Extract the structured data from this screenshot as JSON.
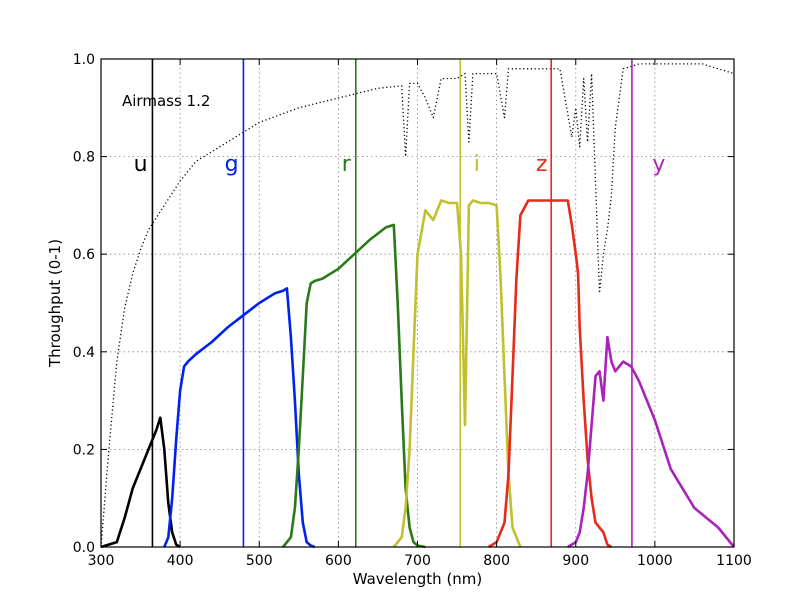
{
  "chart_data": {
    "type": "line",
    "title": "",
    "xlabel": "Wavelength (nm)",
    "ylabel": "Throughput (0-1)",
    "xlim": [
      300,
      1100
    ],
    "ylim": [
      0.0,
      1.0
    ],
    "xticks": [
      300,
      400,
      500,
      600,
      700,
      800,
      900,
      1000,
      1100
    ],
    "xtick_labels": [
      "300",
      "400",
      "500",
      "600",
      "700",
      "800",
      "900",
      "1000",
      "1100"
    ],
    "yticks": [
      0.0,
      0.2,
      0.4,
      0.6,
      0.8,
      1.0
    ],
    "ytick_labels": [
      "0.0",
      "0.2",
      "0.4",
      "0.6",
      "0.8",
      "1.0"
    ],
    "grid": true,
    "annotation": "Airmass 1.2",
    "series": [
      {
        "name": "u",
        "color": "#000000",
        "style": "solid",
        "x": [
          300,
          320,
          330,
          340,
          350,
          360,
          370,
          375,
          380,
          385,
          390,
          395,
          400
        ],
        "y": [
          0.0,
          0.01,
          0.06,
          0.12,
          0.16,
          0.2,
          0.24,
          0.265,
          0.2,
          0.09,
          0.03,
          0.005,
          0.0
        ]
      },
      {
        "name": "g",
        "color": "#0022ee",
        "style": "solid",
        "x": [
          380,
          385,
          390,
          395,
          400,
          405,
          410,
          420,
          440,
          460,
          480,
          500,
          520,
          530,
          535,
          540,
          545,
          550,
          555,
          560,
          565,
          570
        ],
        "y": [
          0.0,
          0.02,
          0.1,
          0.22,
          0.32,
          0.37,
          0.38,
          0.395,
          0.42,
          0.45,
          0.475,
          0.5,
          0.52,
          0.525,
          0.53,
          0.43,
          0.3,
          0.15,
          0.05,
          0.01,
          0.003,
          0.0
        ]
      },
      {
        "name": "r",
        "color": "#2a7a1a",
        "style": "solid",
        "x": [
          530,
          540,
          545,
          550,
          555,
          560,
          565,
          570,
          580,
          600,
          620,
          640,
          660,
          670,
          675,
          680,
          685,
          690,
          695,
          700,
          710
        ],
        "y": [
          0.0,
          0.02,
          0.08,
          0.2,
          0.35,
          0.5,
          0.54,
          0.545,
          0.55,
          0.57,
          0.6,
          0.63,
          0.655,
          0.66,
          0.5,
          0.3,
          0.12,
          0.04,
          0.01,
          0.003,
          0.0
        ]
      },
      {
        "name": "i",
        "color": "#c0c030",
        "style": "solid",
        "x": [
          670,
          680,
          685,
          690,
          695,
          700,
          710,
          720,
          730,
          740,
          750,
          755,
          760,
          765,
          770,
          780,
          790,
          800,
          805,
          810,
          815,
          820,
          830
        ],
        "y": [
          0.0,
          0.02,
          0.08,
          0.2,
          0.4,
          0.6,
          0.69,
          0.67,
          0.71,
          0.705,
          0.705,
          0.6,
          0.25,
          0.7,
          0.71,
          0.705,
          0.705,
          0.7,
          0.55,
          0.35,
          0.15,
          0.04,
          0.0
        ]
      },
      {
        "name": "z",
        "color": "#e82a1a",
        "style": "solid",
        "x": [
          790,
          800,
          810,
          815,
          820,
          825,
          830,
          840,
          860,
          880,
          890,
          895,
          900,
          903,
          905,
          910,
          915,
          920,
          925,
          930,
          935,
          940,
          945
        ],
        "y": [
          0.0,
          0.01,
          0.05,
          0.15,
          0.35,
          0.55,
          0.68,
          0.71,
          0.71,
          0.71,
          0.71,
          0.66,
          0.6,
          0.56,
          0.45,
          0.3,
          0.18,
          0.1,
          0.05,
          0.04,
          0.03,
          0.005,
          0.0
        ]
      },
      {
        "name": "y",
        "color": "#aa22bb",
        "style": "solid",
        "x": [
          890,
          900,
          905,
          910,
          915,
          920,
          925,
          930,
          935,
          940,
          945,
          950,
          960,
          970,
          980,
          1000,
          1020,
          1050,
          1080,
          1100
        ],
        "y": [
          0.0,
          0.01,
          0.03,
          0.08,
          0.15,
          0.25,
          0.35,
          0.36,
          0.3,
          0.43,
          0.38,
          0.36,
          0.38,
          0.37,
          0.34,
          0.26,
          0.16,
          0.08,
          0.04,
          0.0
        ]
      },
      {
        "name": "Airmass 1.2",
        "color": "#000000",
        "style": "dotted",
        "x": [
          300,
          310,
          320,
          330,
          340,
          350,
          360,
          380,
          400,
          420,
          450,
          500,
          550,
          600,
          650,
          680,
          685,
          690,
          695,
          700,
          710,
          720,
          730,
          740,
          750,
          760,
          765,
          770,
          780,
          800,
          810,
          815,
          820,
          830,
          840,
          860,
          880,
          895,
          900,
          905,
          910,
          915,
          920,
          930,
          935,
          940,
          945,
          950,
          960,
          980,
          1000,
          1020,
          1040,
          1060,
          1080,
          1090,
          1100
        ],
        "y": [
          0.0,
          0.2,
          0.38,
          0.49,
          0.56,
          0.61,
          0.65,
          0.7,
          0.75,
          0.79,
          0.82,
          0.87,
          0.9,
          0.92,
          0.94,
          0.945,
          0.8,
          0.95,
          0.95,
          0.95,
          0.92,
          0.88,
          0.96,
          0.96,
          0.96,
          0.97,
          0.83,
          0.97,
          0.97,
          0.97,
          0.88,
          0.98,
          0.98,
          0.98,
          0.98,
          0.98,
          0.98,
          0.84,
          0.9,
          0.82,
          0.96,
          0.83,
          0.97,
          0.52,
          0.6,
          0.65,
          0.72,
          0.86,
          0.98,
          0.99,
          0.99,
          0.99,
          0.99,
          0.99,
          0.98,
          0.975,
          0.97
        ]
      }
    ],
    "filter_lines": [
      {
        "name": "u",
        "x": 365,
        "color": "#000000"
      },
      {
        "name": "g",
        "x": 480,
        "color": "#0022ee"
      },
      {
        "name": "r",
        "x": 622,
        "color": "#2a7a1a"
      },
      {
        "name": "i",
        "x": 754,
        "color": "#c0c030"
      },
      {
        "name": "z",
        "x": 869,
        "color": "#e82a1a"
      },
      {
        "name": "y",
        "x": 971,
        "color": "#aa22bb"
      }
    ],
    "band_labels": [
      {
        "text": "u",
        "x": 350,
        "y": 0.77,
        "color": "#000000"
      },
      {
        "text": "g",
        "x": 465,
        "y": 0.77,
        "color": "#0022ee"
      },
      {
        "text": "r",
        "x": 610,
        "y": 0.77,
        "color": "#2a7a1a"
      },
      {
        "text": "i",
        "x": 775,
        "y": 0.77,
        "color": "#c0c030"
      },
      {
        "text": "z",
        "x": 857,
        "y": 0.77,
        "color": "#e82a1a"
      },
      {
        "text": "y",
        "x": 1005,
        "y": 0.77,
        "color": "#aa22bb"
      }
    ]
  }
}
